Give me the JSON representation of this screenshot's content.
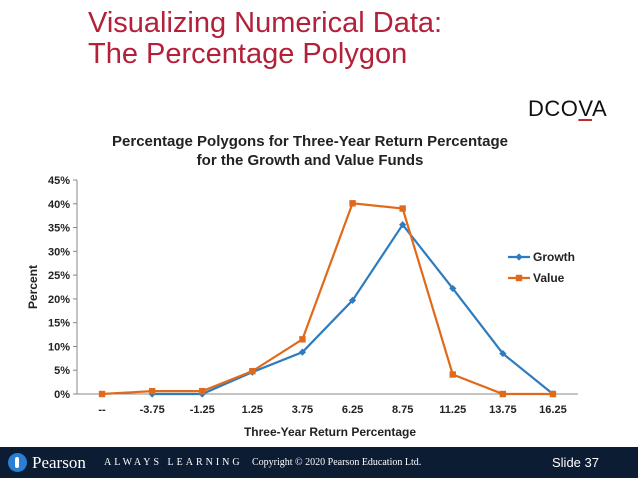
{
  "slide": {
    "title_line1": "Visualizing Numerical Data:",
    "title_line2": "The Percentage Polygon",
    "tag_prefix": "DCO",
    "tag_highlight": "V",
    "tag_suffix": "A"
  },
  "footer": {
    "brand": "Pearson",
    "tagline": "ALWAYS LEARNING",
    "copyright": "Copyright © 2020 Pearson Education Ltd.",
    "slide_number": "Slide 37"
  },
  "chart_data": {
    "type": "line",
    "title_lines": [
      "Percentage Polygons for Three-Year Return Percentage",
      "for the Growth and Value Funds"
    ],
    "xlabel": "Three-Year Return Percentage",
    "ylabel": "Percent",
    "categories": [
      "--",
      "-3.75",
      "-1.25",
      "1.25",
      "3.75",
      "6.25",
      "8.75",
      "11.25",
      "13.75",
      "16.25"
    ],
    "y_ticks": [
      "0%",
      "5%",
      "10%",
      "15%",
      "20%",
      "25%",
      "30%",
      "35%",
      "40%",
      "45%"
    ],
    "ylim": [
      0,
      45
    ],
    "grid": false,
    "legend_position": "right",
    "series": [
      {
        "name": "Growth",
        "color": "#2e7bbf",
        "marker": "diamond",
        "values": [
          null,
          0,
          0,
          4.6,
          8.8,
          19.7,
          35.6,
          22.2,
          8.5,
          0
        ]
      },
      {
        "name": "Value",
        "color": "#e06a1b",
        "marker": "square",
        "values": [
          0,
          0.6,
          0.6,
          4.8,
          11.5,
          40.1,
          39.0,
          4.1,
          0,
          0
        ]
      }
    ]
  }
}
